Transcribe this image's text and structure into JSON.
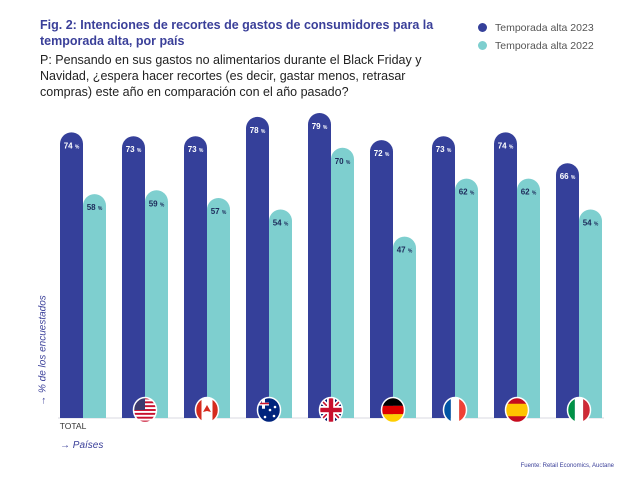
{
  "chart_data": {
    "type": "bar",
    "title": "Fig. 2: Intenciones de recortes de gastos de consumidores para la temporada alta, por país",
    "subtitle": "P: Pensando en sus gastos no alimentarios durante el Black Friday y Navidad, ¿espera hacer recortes (es decir, gastar menos, retrasar compras) este año en comparación con el año pasado?",
    "xlabel": "→ Países",
    "ylabel": "→ % de los encuestados",
    "categories": [
      "TOTAL",
      "Estados Unidos",
      "Canadá",
      "Australia",
      "Reino Unido",
      "Alemania",
      "Francia",
      "España",
      "Italia"
    ],
    "category_display": [
      "TOTAL",
      "flag-us",
      "flag-ca",
      "flag-au",
      "flag-uk",
      "flag-de",
      "flag-fr",
      "flag-es",
      "flag-it"
    ],
    "series": [
      {
        "name": "Temporada alta 2023",
        "color": "#35409a",
        "values": [
          74,
          73,
          73,
          78,
          79,
          72,
          73,
          74,
          66
        ]
      },
      {
        "name": "Temporada alta 2022",
        "color": "#7ecfcf",
        "values": [
          58,
          59,
          57,
          54,
          70,
          47,
          62,
          62,
          54
        ]
      }
    ],
    "value_suffix": "%",
    "ylim": [
      0,
      80
    ],
    "grid": false,
    "legend_position": "top-right",
    "source": "Fuente: Retail Economics, Auctane"
  }
}
